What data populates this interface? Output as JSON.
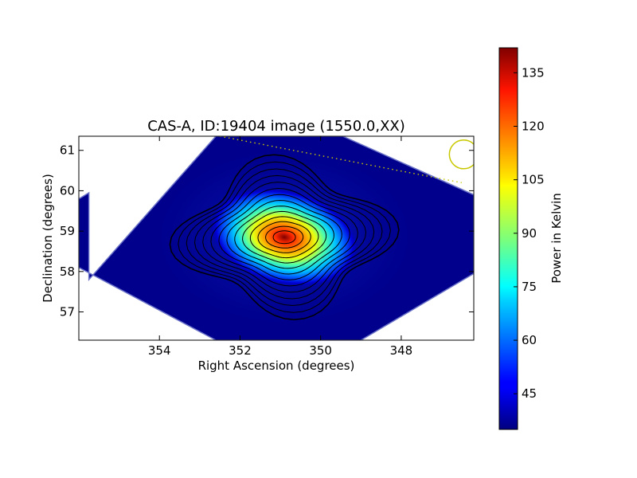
{
  "chart_data": {
    "type": "heatmap",
    "title": "CAS-A, ID:19404 image (1550.0,XX)",
    "xlabel": "Right Ascension (degrees)",
    "ylabel": "Declination (degrees)",
    "xlim": [
      356.0,
      346.2
    ],
    "ylim": [
      56.3,
      61.35
    ],
    "x_ticks": [
      354,
      352,
      350,
      348
    ],
    "y_ticks": [
      57,
      58,
      59,
      60,
      61
    ],
    "colorbar": {
      "label": "Power in Kelvin",
      "range": [
        35,
        142
      ],
      "ticks": [
        45,
        60,
        75,
        90,
        105,
        120,
        135
      ],
      "colormap": "jet"
    },
    "sky_coverage_corners": [
      {
        "x": 355.75,
        "y": 57.8
      },
      {
        "x": 352.6,
        "y": 61.35
      },
      {
        "x": 349.45,
        "y": 61.35
      },
      {
        "x": 346.2,
        "y": 59.9
      },
      {
        "x": 346.2,
        "y": 57.95
      },
      {
        "x": 349.0,
        "y": 56.3
      },
      {
        "x": 352.6,
        "y": 56.3
      },
      {
        "x": 356.0,
        "y": 58.1
      },
      {
        "x": 356.0,
        "y": 59.8
      },
      {
        "x": 355.75,
        "y": 59.95
      }
    ],
    "source": {
      "name": "CAS-A",
      "x": 350.9,
      "y": 58.85,
      "peak_kelvin": 142,
      "background_kelvin": 38
    },
    "horizon_line": [
      {
        "x": 352.5,
        "y": 61.35
      },
      {
        "x": 346.5,
        "y": 60.2
      }
    ],
    "beam_marker": {
      "x": 346.45,
      "y": 60.9
    },
    "colors": {
      "horizon_line": "#c8c800",
      "beam_marker": "#c8c800",
      "contour": "#000000"
    }
  }
}
